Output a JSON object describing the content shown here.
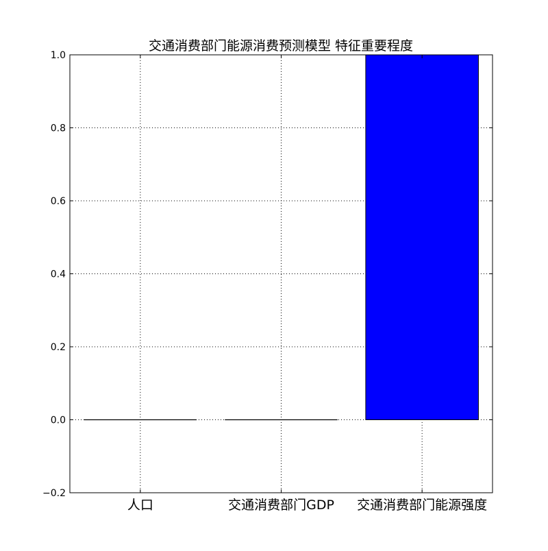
{
  "chart_data": {
    "type": "bar",
    "title": "交通消费部门能源消费预测模型 特征重要程度",
    "categories": [
      "人口",
      "交通消费部门GDP",
      "交通消费部门能源强度"
    ],
    "values": [
      0.0,
      0.0,
      1.0
    ],
    "ylim": [
      -0.2,
      1.0
    ],
    "yticks": [
      "1.0",
      "0.8",
      "0.6",
      "0.4",
      "0.2",
      "0.0",
      "−0.2"
    ],
    "ytick_values": [
      1.0,
      0.8,
      0.6,
      0.4,
      0.2,
      0.0,
      -0.2
    ],
    "xlabel": "",
    "ylabel": "",
    "grid": true,
    "bar_color": "#0000ff",
    "bar_edge_color": "#000000"
  }
}
